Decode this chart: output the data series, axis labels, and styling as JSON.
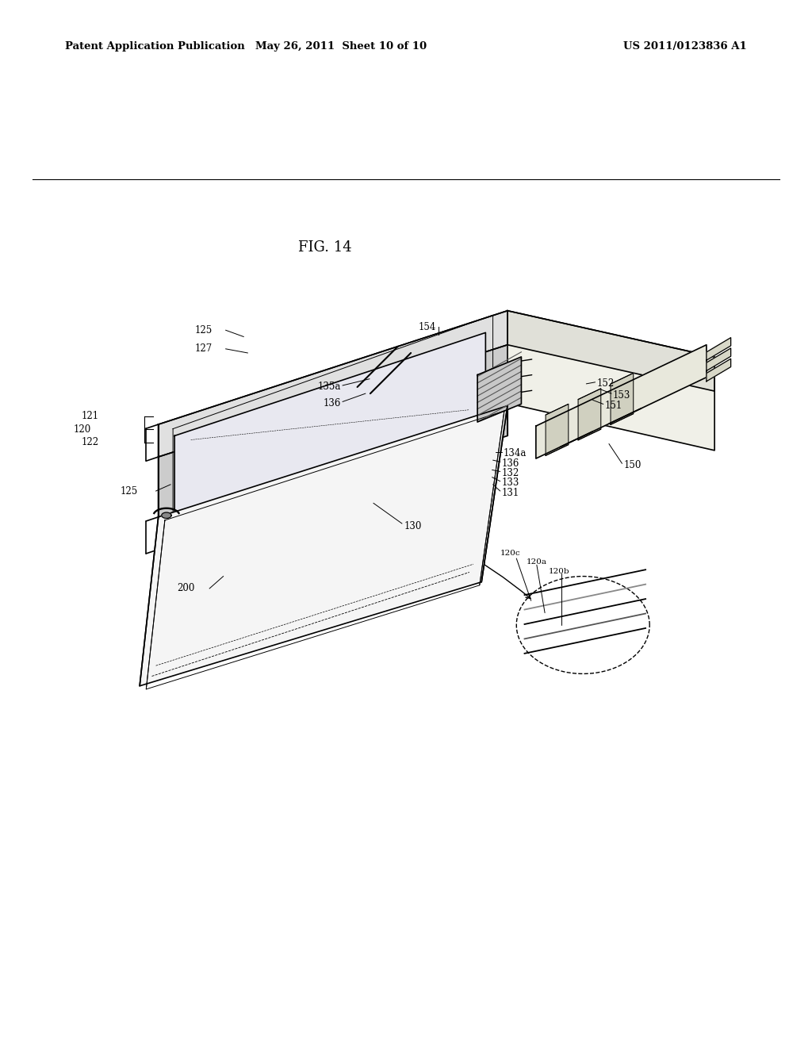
{
  "background_color": "#ffffff",
  "header_left": "Patent Application Publication",
  "header_center": "May 26, 2011  Sheet 10 of 10",
  "header_right": "US 2011/0123836 A1",
  "fig_label": "FIG. 14",
  "text_color": "#000000",
  "line_color": "#000000",
  "line_width": 1.2,
  "dpi": 100,
  "figsize": [
    10.24,
    13.2
  ]
}
